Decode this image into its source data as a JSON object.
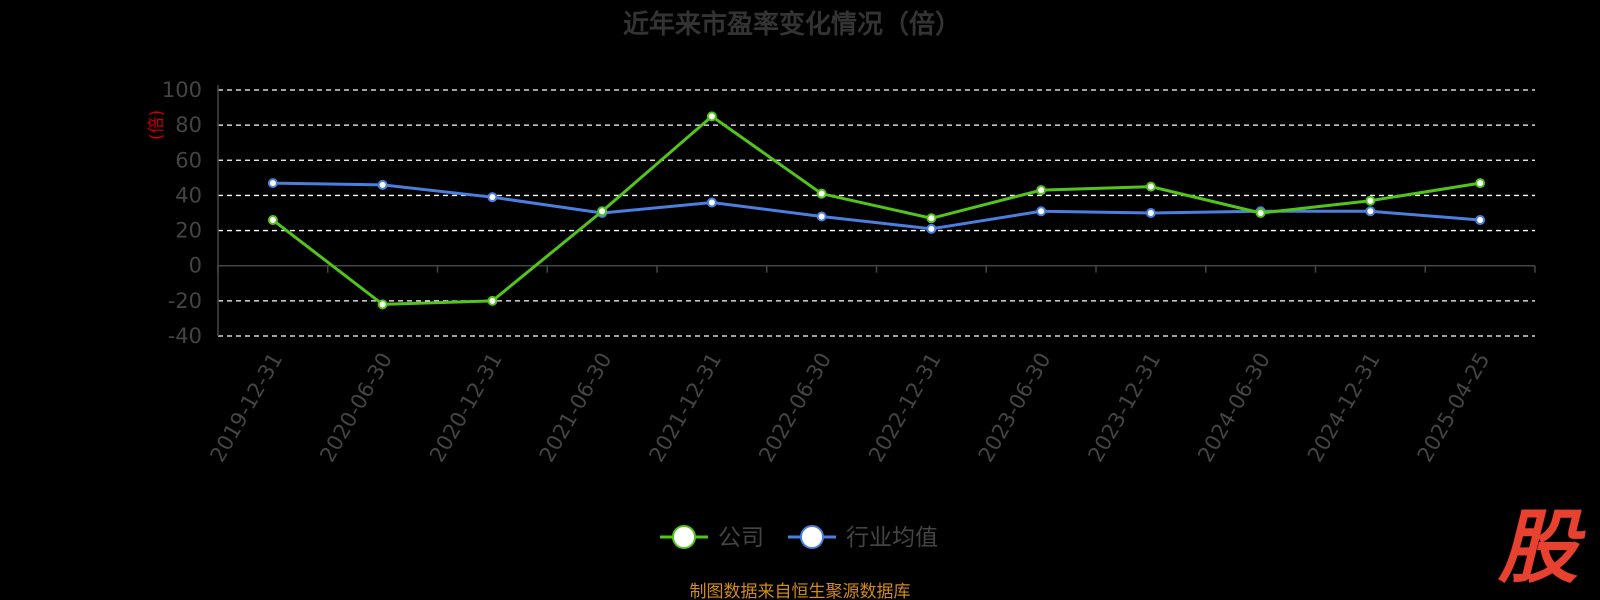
{
  "chart_data": {
    "type": "line",
    "title": "近年来市盈率变化情况（倍）",
    "ylabel": "(倍)",
    "ylim": [
      -40,
      100
    ],
    "yticks": [
      100,
      80,
      60,
      40,
      20,
      0,
      -20,
      -40
    ],
    "grid": true,
    "legend_position": "bottom",
    "categories": [
      "2019-12-31",
      "2020-06-30",
      "2020-12-31",
      "2021-06-30",
      "2021-12-31",
      "2022-06-30",
      "2022-12-31",
      "2023-06-30",
      "2023-12-31",
      "2024-06-30",
      "2024-12-31",
      "2025-04-25"
    ],
    "series": [
      {
        "name": "公司",
        "color": "#52c41a",
        "values": [
          26,
          -22,
          -20,
          31,
          85,
          41,
          27,
          43,
          45,
          30,
          37,
          47
        ]
      },
      {
        "name": "行业均值",
        "color": "#4a7fe0",
        "values": [
          47,
          46,
          39,
          30,
          36,
          28,
          21,
          31,
          30,
          31,
          31,
          26
        ]
      }
    ]
  },
  "source_text": "制图数据来自恒生聚源数据库",
  "watermark_text": "股"
}
